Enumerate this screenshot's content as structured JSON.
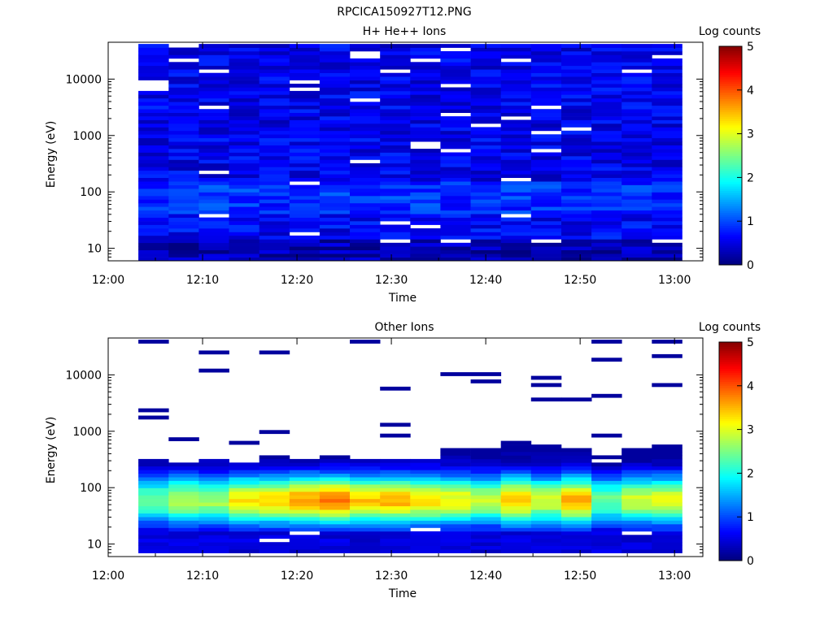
{
  "figure": {
    "title": "RPCICA150927T12.PNG"
  },
  "chart_data": [
    {
      "type": "heatmap",
      "title": "H+ He++ Ions",
      "xlabel": "Time",
      "ylabel": "Energy (eV)",
      "x_ticks": [
        "12:00",
        "12:10",
        "12:20",
        "12:30",
        "12:40",
        "12:50",
        "13:00"
      ],
      "xlim_minutes": [
        0,
        63
      ],
      "y_scale": "log",
      "y_ticks": [
        10,
        100,
        1000,
        10000
      ],
      "y_tick_labels": [
        "10",
        "100",
        "1000",
        "10000"
      ],
      "ylim": [
        6,
        45000
      ],
      "colorbar": {
        "label": "Log counts",
        "range": [
          0,
          5
        ],
        "ticks": [
          "0",
          "1",
          "2",
          "3",
          "4",
          "5"
        ],
        "colormap": "jet"
      },
      "time_bins_minutes": [
        [
          3.2,
          6.4
        ],
        [
          6.4,
          9.6
        ],
        [
          9.6,
          12.8
        ],
        [
          12.8,
          16
        ],
        [
          16,
          19.2
        ],
        [
          19.2,
          22.4
        ],
        [
          22.4,
          25.6
        ],
        [
          25.6,
          28.8
        ],
        [
          28.8,
          32
        ],
        [
          32,
          35.2
        ],
        [
          35.2,
          38.4
        ],
        [
          38.4,
          41.6
        ],
        [
          41.6,
          44.8
        ],
        [
          44.8,
          48
        ],
        [
          48,
          51.2
        ],
        [
          51.2,
          54.4
        ],
        [
          54.4,
          57.6
        ],
        [
          57.6,
          60.8
        ]
      ],
      "energy_range_eV": [
        6,
        42000
      ],
      "profile_log_counts": [
        {
          "e_min": 6,
          "e_max": 15,
          "log_counts": 0.25
        },
        {
          "e_min": 15,
          "e_max": 40,
          "log_counts": 0.6
        },
        {
          "e_min": 40,
          "e_max": 150,
          "log_counts": 0.85
        },
        {
          "e_min": 150,
          "e_max": 42000,
          "log_counts": 0.55
        }
      ],
      "peak_log_counts": 1.4
    },
    {
      "type": "heatmap",
      "title": "Other Ions",
      "xlabel": "Time",
      "ylabel": "Energy (eV)",
      "x_ticks": [
        "12:00",
        "12:10",
        "12:20",
        "12:30",
        "12:40",
        "12:50",
        "13:00"
      ],
      "xlim_minutes": [
        0,
        63
      ],
      "y_scale": "log",
      "y_ticks": [
        10,
        100,
        1000,
        10000
      ],
      "y_tick_labels": [
        "10",
        "100",
        "1000",
        "10000"
      ],
      "ylim": [
        6,
        45000
      ],
      "colorbar": {
        "label": "Log counts",
        "range": [
          0,
          5
        ],
        "ticks": [
          "0",
          "1",
          "2",
          "3",
          "4",
          "5"
        ],
        "colormap": "jet"
      },
      "time_bins_minutes": [
        [
          3.2,
          6.4
        ],
        [
          6.4,
          9.6
        ],
        [
          9.6,
          12.8
        ],
        [
          12.8,
          16
        ],
        [
          16,
          19.2
        ],
        [
          19.2,
          22.4
        ],
        [
          22.4,
          25.6
        ],
        [
          25.6,
          28.8
        ],
        [
          28.8,
          32
        ],
        [
          32,
          35.2
        ],
        [
          35.2,
          38.4
        ],
        [
          38.4,
          41.6
        ],
        [
          41.6,
          44.8
        ],
        [
          44.8,
          48
        ],
        [
          48,
          51.2
        ],
        [
          51.2,
          54.4
        ],
        [
          54.4,
          57.6
        ],
        [
          57.6,
          60.8
        ]
      ],
      "upper_energy_edge_eV": [
        330,
        270,
        300,
        290,
        350,
        330,
        300,
        300,
        310,
        320,
        520,
        540,
        720,
        600,
        540,
        230,
        520,
        560
      ],
      "peak_log_counts_by_bin": [
        2.4,
        2.8,
        2.7,
        3.2,
        3.3,
        3.6,
        3.8,
        3.4,
        3.5,
        3.3,
        3.1,
        2.8,
        3.4,
        2.9,
        3.5,
        2.4,
        2.9,
        3.0
      ],
      "peak_energy_eV": 60
    }
  ]
}
